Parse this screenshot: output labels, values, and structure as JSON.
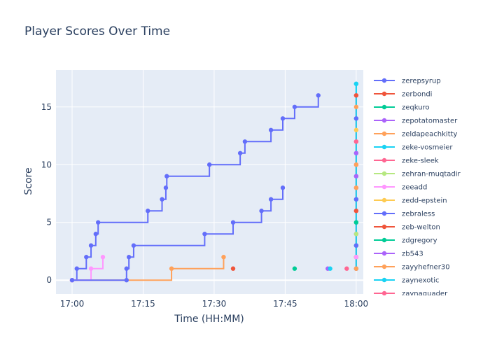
{
  "chart_data": {
    "type": "line",
    "title": "Player Scores Over Time",
    "xlabel": "Time (HH:MM)",
    "ylabel": "Score",
    "x_domain_minutes": [
      -3.4,
      61.5
    ],
    "ylim": [
      -1.2,
      18.2
    ],
    "x_ticks": [
      {
        "minutes": 0,
        "label": "17:00"
      },
      {
        "minutes": 15,
        "label": "17:15"
      },
      {
        "minutes": 30,
        "label": "17:30"
      },
      {
        "minutes": 45,
        "label": "17:45"
      },
      {
        "minutes": 60,
        "label": "18:00"
      }
    ],
    "y_ticks": [
      0,
      5,
      10,
      15
    ],
    "grid": true,
    "legend_position": "right",
    "colors": {
      "plot_bg": "#e5ecf6",
      "grid": "#ffffff",
      "text": "#2a3f5f"
    },
    "series": [
      {
        "name": "zerepsyrup",
        "color": "#636efa",
        "points": [
          [
            0,
            0
          ],
          [
            1,
            1
          ],
          [
            3,
            2
          ],
          [
            4,
            3
          ],
          [
            5,
            4
          ],
          [
            5.5,
            5
          ],
          [
            16,
            6
          ],
          [
            19,
            7
          ],
          [
            19.8,
            8
          ],
          [
            20,
            9
          ],
          [
            29,
            10
          ],
          [
            35.5,
            11
          ],
          [
            36.5,
            12
          ],
          [
            42,
            13
          ],
          [
            44.5,
            14
          ],
          [
            47,
            15
          ],
          [
            52,
            16
          ]
        ]
      },
      {
        "name": "zerbondi",
        "color": "#ef553b",
        "points": [
          [
            34,
            1
          ]
        ]
      },
      {
        "name": "zeqkuro",
        "color": "#00cc96",
        "points": [
          [
            47,
            1
          ]
        ]
      },
      {
        "name": "zepotatomaster",
        "color": "#ab63fa",
        "points": [
          [
            54,
            1
          ]
        ]
      },
      {
        "name": "zeldapeachkitty",
        "color": "#ffa15a",
        "points": [
          [
            0,
            0
          ],
          [
            21,
            1
          ],
          [
            32,
            2
          ]
        ]
      },
      {
        "name": "zeke-vosmeier",
        "color": "#19d3f3",
        "points": [
          [
            54.5,
            1
          ]
        ]
      },
      {
        "name": "zeke-sleek",
        "color": "#ff6692",
        "points": [
          [
            58,
            1
          ]
        ]
      },
      {
        "name": "zehran-muqtadir",
        "color": "#b6e880",
        "points": [
          [
            60,
            1
          ]
        ]
      },
      {
        "name": "zeeadd",
        "color": "#ff97ff",
        "points": [
          [
            0,
            0
          ],
          [
            4,
            1
          ],
          [
            6.5,
            2
          ]
        ]
      },
      {
        "name": "zedd-epstein",
        "color": "#fecb52",
        "points": [
          [
            60,
            2
          ]
        ]
      },
      {
        "name": "zebraless",
        "color": "#636efa",
        "points": [
          [
            0,
            0
          ],
          [
            11.5,
            0
          ],
          [
            11.5,
            1
          ],
          [
            12,
            2
          ],
          [
            13,
            3
          ],
          [
            28,
            4
          ],
          [
            34,
            5
          ],
          [
            40,
            6
          ],
          [
            42,
            7
          ],
          [
            44.5,
            8
          ]
        ]
      },
      {
        "name": "zeb-welton",
        "color": "#ef553b",
        "points": [
          [
            60,
            2
          ]
        ]
      },
      {
        "name": "zdgregory",
        "color": "#00cc96",
        "points": [
          [
            60,
            3
          ]
        ]
      },
      {
        "name": "zb543",
        "color": "#ab63fa",
        "points": [
          [
            60,
            4
          ]
        ]
      },
      {
        "name": "zayyhefner30",
        "color": "#ffa15a",
        "points": [
          [
            60,
            5
          ]
        ]
      },
      {
        "name": "zaynexotic",
        "color": "#19d3f3",
        "points": [
          [
            60,
            1
          ],
          [
            60,
            3
          ],
          [
            60,
            5
          ],
          [
            60,
            7
          ],
          [
            60,
            9
          ],
          [
            60,
            11
          ],
          [
            60,
            14
          ],
          [
            60,
            17
          ]
        ]
      },
      {
        "name": "zaynaquader",
        "color": "#ff6692",
        "points": [
          [
            60,
            1
          ],
          [
            60,
            6
          ],
          [
            60,
            8
          ],
          [
            60,
            10
          ],
          [
            60,
            12
          ],
          [
            60,
            16
          ]
        ]
      }
    ],
    "vertical_stack": {
      "x_minutes": 60,
      "markers": [
        {
          "y": 1,
          "color": "#ffa15a"
        },
        {
          "y": 2,
          "color": "#ff97ff"
        },
        {
          "y": 3,
          "color": "#636efa"
        },
        {
          "y": 4,
          "color": "#b6e880"
        },
        {
          "y": 5,
          "color": "#00cc96"
        },
        {
          "y": 6,
          "color": "#ef553b"
        },
        {
          "y": 7,
          "color": "#636efa"
        },
        {
          "y": 8,
          "color": "#ffa15a"
        },
        {
          "y": 9,
          "color": "#ab63fa"
        },
        {
          "y": 10,
          "color": "#ffa15a"
        },
        {
          "y": 11,
          "color": "#ab63fa"
        },
        {
          "y": 12,
          "color": "#ff6692"
        },
        {
          "y": 13,
          "color": "#fecb52"
        },
        {
          "y": 14,
          "color": "#636efa"
        },
        {
          "y": 15,
          "color": "#ffa15a"
        },
        {
          "y": 16,
          "color": "#ef553b"
        },
        {
          "y": 17,
          "color": "#19d3f3"
        }
      ]
    }
  }
}
